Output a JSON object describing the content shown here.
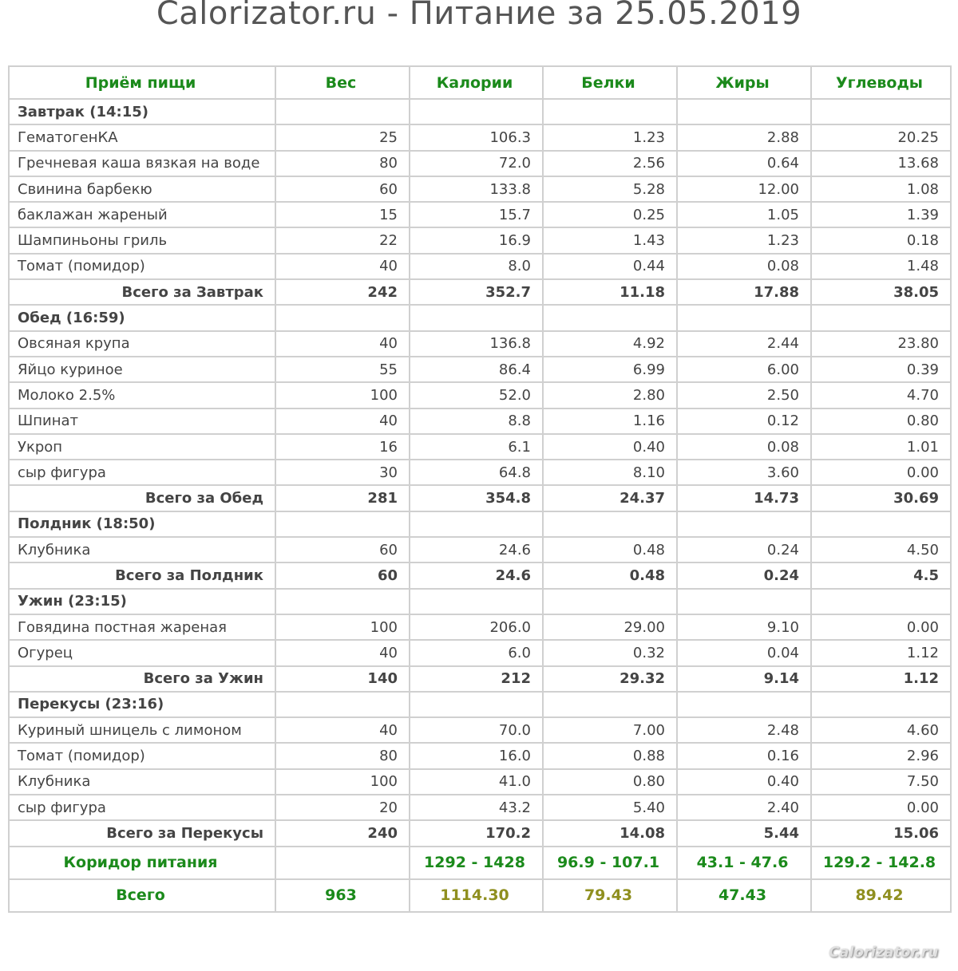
{
  "title": "Calorizator.ru - Питание за 25.05.2019",
  "headers": [
    "Приём пищи",
    "Вес",
    "Калории",
    "Белки",
    "Жиры",
    "Углеводы"
  ],
  "sections": [
    {
      "name": "Завтрак (14:15)",
      "items": [
        [
          "ГематогенКА",
          "25",
          "106.3",
          "1.23",
          "2.88",
          "20.25"
        ],
        [
          "Гречневая каша вязкая на воде",
          "80",
          "72.0",
          "2.56",
          "0.64",
          "13.68"
        ],
        [
          "Свинина барбекю",
          "60",
          "133.8",
          "5.28",
          "12.00",
          "1.08"
        ],
        [
          "баклажан жареный",
          "15",
          "15.7",
          "0.25",
          "1.05",
          "1.39"
        ],
        [
          "Шампиньоны гриль",
          "22",
          "16.9",
          "1.43",
          "1.23",
          "0.18"
        ],
        [
          "Томат (помидор)",
          "40",
          "8.0",
          "0.44",
          "0.08",
          "1.48"
        ]
      ],
      "total": [
        "Всего за Завтрак",
        "242",
        "352.7",
        "11.18",
        "17.88",
        "38.05"
      ]
    },
    {
      "name": "Обед (16:59)",
      "items": [
        [
          "Овсяная крупа",
          "40",
          "136.8",
          "4.92",
          "2.44",
          "23.80"
        ],
        [
          "Яйцо куриное",
          "55",
          "86.4",
          "6.99",
          "6.00",
          "0.39"
        ],
        [
          "Молоко 2.5%",
          "100",
          "52.0",
          "2.80",
          "2.50",
          "4.70"
        ],
        [
          "Шпинат",
          "40",
          "8.8",
          "1.16",
          "0.12",
          "0.80"
        ],
        [
          "Укроп",
          "16",
          "6.1",
          "0.40",
          "0.08",
          "1.01"
        ],
        [
          "сыр фигура",
          "30",
          "64.8",
          "8.10",
          "3.60",
          "0.00"
        ]
      ],
      "total": [
        "Всего за Обед",
        "281",
        "354.8",
        "24.37",
        "14.73",
        "30.69"
      ]
    },
    {
      "name": "Полдник (18:50)",
      "items": [
        [
          "Клубника",
          "60",
          "24.6",
          "0.48",
          "0.24",
          "4.50"
        ]
      ],
      "total": [
        "Всего за Полдник",
        "60",
        "24.6",
        "0.48",
        "0.24",
        "4.5"
      ]
    },
    {
      "name": "Ужин (23:15)",
      "items": [
        [
          "Говядина постная жареная",
          "100",
          "206.0",
          "29.00",
          "9.10",
          "0.00"
        ],
        [
          "Огурец",
          "40",
          "6.0",
          "0.32",
          "0.04",
          "1.12"
        ]
      ],
      "total": [
        "Всего за Ужин",
        "140",
        "212",
        "29.32",
        "9.14",
        "1.12"
      ]
    },
    {
      "name": "Перекусы (23:16)",
      "items": [
        [
          "Куриный шницель с лимоном",
          "40",
          "70.0",
          "7.00",
          "2.48",
          "4.60"
        ],
        [
          "Томат (помидор)",
          "80",
          "16.0",
          "0.88",
          "0.16",
          "2.96"
        ],
        [
          "Клубника",
          "100",
          "41.0",
          "0.80",
          "0.40",
          "7.50"
        ],
        [
          "сыр фигура",
          "20",
          "43.2",
          "5.40",
          "2.40",
          "0.00"
        ]
      ],
      "total": [
        "Всего за Перекусы",
        "240",
        "170.2",
        "14.08",
        "5.44",
        "15.06"
      ]
    }
  ],
  "corridor": [
    "Коридор питания",
    "",
    "1292 - 1428",
    "96.9 - 107.1",
    "43.1 - 47.6",
    "129.2 - 142.8"
  ],
  "grand_total": [
    "Всего",
    "963",
    "1114.30",
    "79.43",
    "47.43",
    "89.42"
  ],
  "grand_total_status": [
    "",
    "ok",
    "low",
    "low",
    "ok",
    "low"
  ],
  "colors": {
    "ok": "#1b8a1b",
    "low": "#8f8f1f"
  },
  "watermark": "Calorizator.ru"
}
